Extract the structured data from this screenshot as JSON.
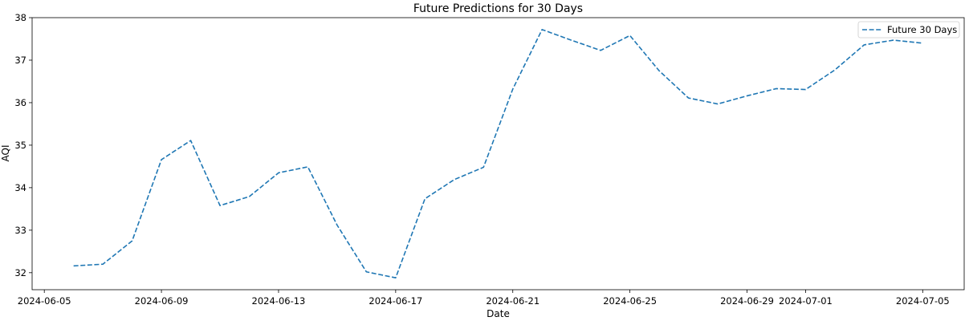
{
  "chart_data": {
    "type": "line",
    "title": "Future Predictions for 30 Days",
    "xlabel": "Date",
    "ylabel": "AQI",
    "x_ticks": [
      "2024-06-05",
      "2024-06-09",
      "2024-06-13",
      "2024-06-17",
      "2024-06-21",
      "2024-06-25",
      "2024-06-29",
      "2024-07-01",
      "2024-07-05"
    ],
    "y_ticks": [
      32,
      33,
      34,
      35,
      36,
      37,
      38
    ],
    "xlim": [
      "2024-06-04 14:00",
      "2024-07-06 10:00"
    ],
    "ylim": [
      31.6,
      38.0
    ],
    "grid": false,
    "legend_position": "top-right",
    "series": [
      {
        "name": "Future 30 Days",
        "color": "#1f77b4",
        "line_style": "dashed",
        "points": [
          {
            "x": "2024-06-06",
            "y": 32.16
          },
          {
            "x": "2024-06-07",
            "y": 32.2
          },
          {
            "x": "2024-06-08",
            "y": 32.75
          },
          {
            "x": "2024-06-09",
            "y": 34.66
          },
          {
            "x": "2024-06-10",
            "y": 35.11
          },
          {
            "x": "2024-06-11",
            "y": 33.58
          },
          {
            "x": "2024-06-12",
            "y": 33.79
          },
          {
            "x": "2024-06-13",
            "y": 34.35
          },
          {
            "x": "2024-06-14",
            "y": 34.49
          },
          {
            "x": "2024-06-15",
            "y": 33.12
          },
          {
            "x": "2024-06-16",
            "y": 32.02
          },
          {
            "x": "2024-06-17",
            "y": 31.88
          },
          {
            "x": "2024-06-18",
            "y": 33.74
          },
          {
            "x": "2024-06-19",
            "y": 34.19
          },
          {
            "x": "2024-06-20",
            "y": 34.48
          },
          {
            "x": "2024-06-21",
            "y": 36.32
          },
          {
            "x": "2024-06-22",
            "y": 37.72
          },
          {
            "x": "2024-06-23",
            "y": 37.47
          },
          {
            "x": "2024-06-24",
            "y": 37.23
          },
          {
            "x": "2024-06-25",
            "y": 37.58
          },
          {
            "x": "2024-06-26",
            "y": 36.75
          },
          {
            "x": "2024-06-27",
            "y": 36.11
          },
          {
            "x": "2024-06-28",
            "y": 35.97
          },
          {
            "x": "2024-06-29",
            "y": 36.16
          },
          {
            "x": "2024-06-30",
            "y": 36.33
          },
          {
            "x": "2024-07-01",
            "y": 36.31
          },
          {
            "x": "2024-07-02",
            "y": 36.77
          },
          {
            "x": "2024-07-03",
            "y": 37.36
          },
          {
            "x": "2024-07-04",
            "y": 37.47
          },
          {
            "x": "2024-07-05",
            "y": 37.4
          }
        ]
      }
    ]
  }
}
